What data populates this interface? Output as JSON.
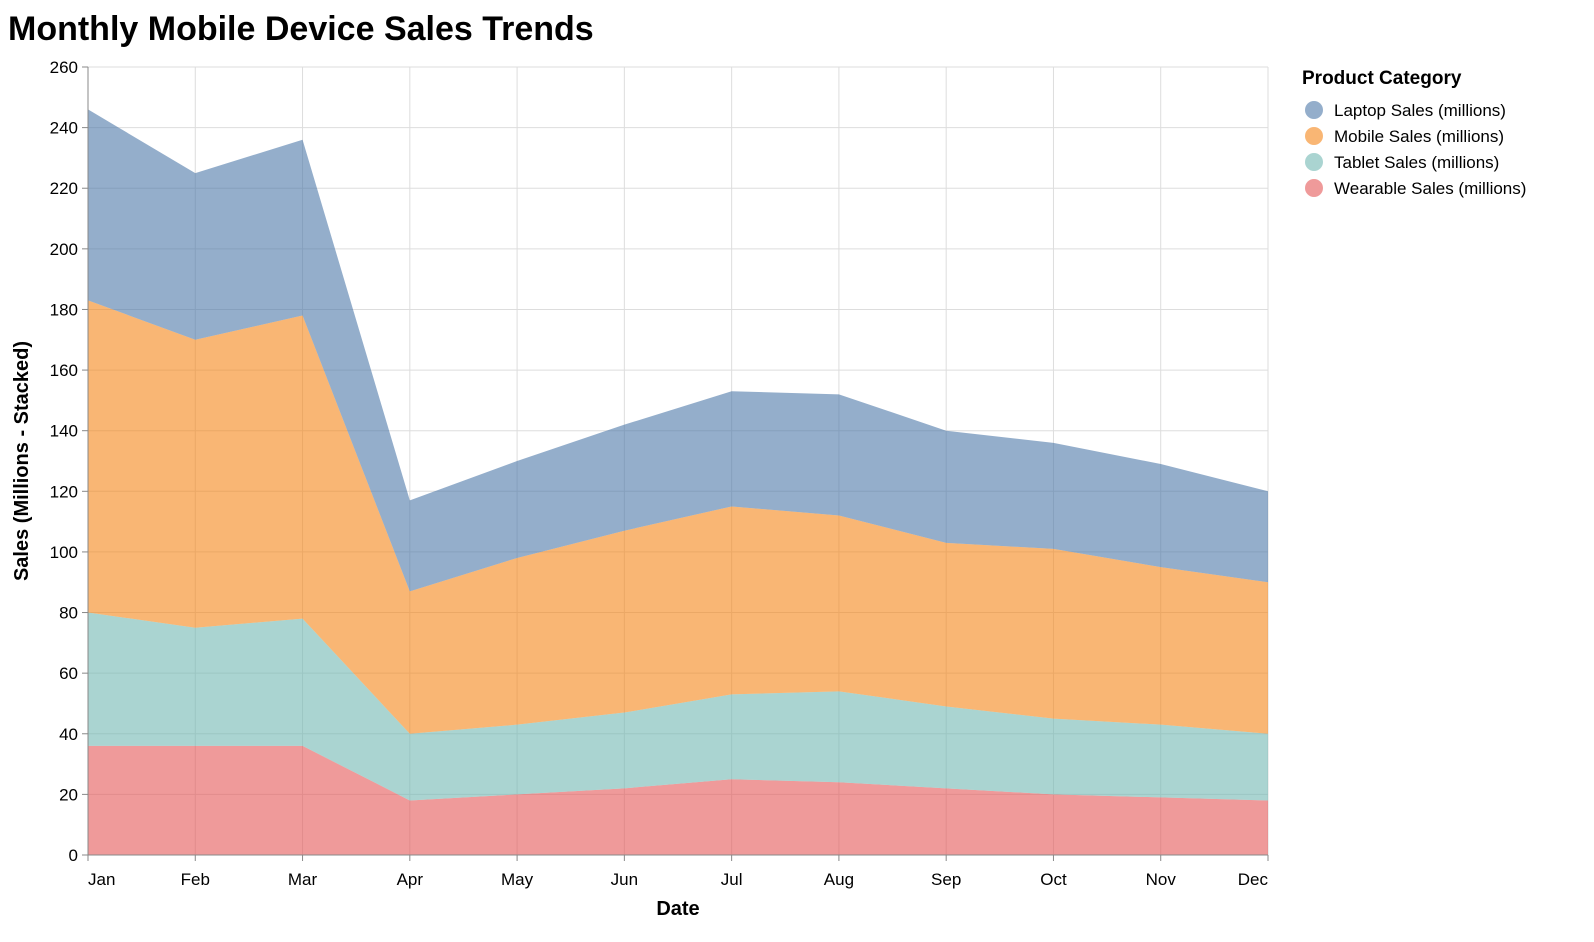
{
  "chart_data": {
    "type": "area",
    "stacked": true,
    "title": "Monthly Mobile Device Sales Trends",
    "xlabel": "Date",
    "ylabel": "Sales (Millions - Stacked)",
    "ylim": [
      0,
      260
    ],
    "yticks": [
      0,
      20,
      40,
      60,
      80,
      100,
      120,
      140,
      160,
      180,
      200,
      220,
      240,
      260
    ],
    "x": [
      "Jan",
      "Feb",
      "Mar",
      "Apr",
      "May",
      "Jun",
      "Jul",
      "Aug",
      "Sep",
      "Oct",
      "Nov",
      "Dec"
    ],
    "grid": true,
    "legend": {
      "title": "Product Category",
      "position": "right"
    },
    "series": [
      {
        "name": "Wearable Sales (millions)",
        "color": "#e45756",
        "values": [
          36,
          36,
          36,
          18,
          20,
          22,
          25,
          24,
          22,
          20,
          19,
          18
        ]
      },
      {
        "name": "Tablet Sales (millions)",
        "color": "#72b7b2",
        "values": [
          44,
          39,
          42,
          22,
          23,
          25,
          28,
          30,
          27,
          25,
          24,
          22
        ]
      },
      {
        "name": "Mobile Sales (millions)",
        "color": "#f58518",
        "values": [
          103,
          95,
          100,
          47,
          55,
          60,
          62,
          58,
          54,
          56,
          52,
          50
        ]
      },
      {
        "name": "Laptop Sales (millions)",
        "color": "#4c78a8",
        "values": [
          63,
          55,
          58,
          30,
          32,
          35,
          38,
          40,
          37,
          35,
          34,
          30
        ]
      }
    ],
    "legend_order": [
      "Laptop Sales (millions)",
      "Mobile Sales (millions)",
      "Tablet Sales (millions)",
      "Wearable Sales (millions)"
    ]
  }
}
